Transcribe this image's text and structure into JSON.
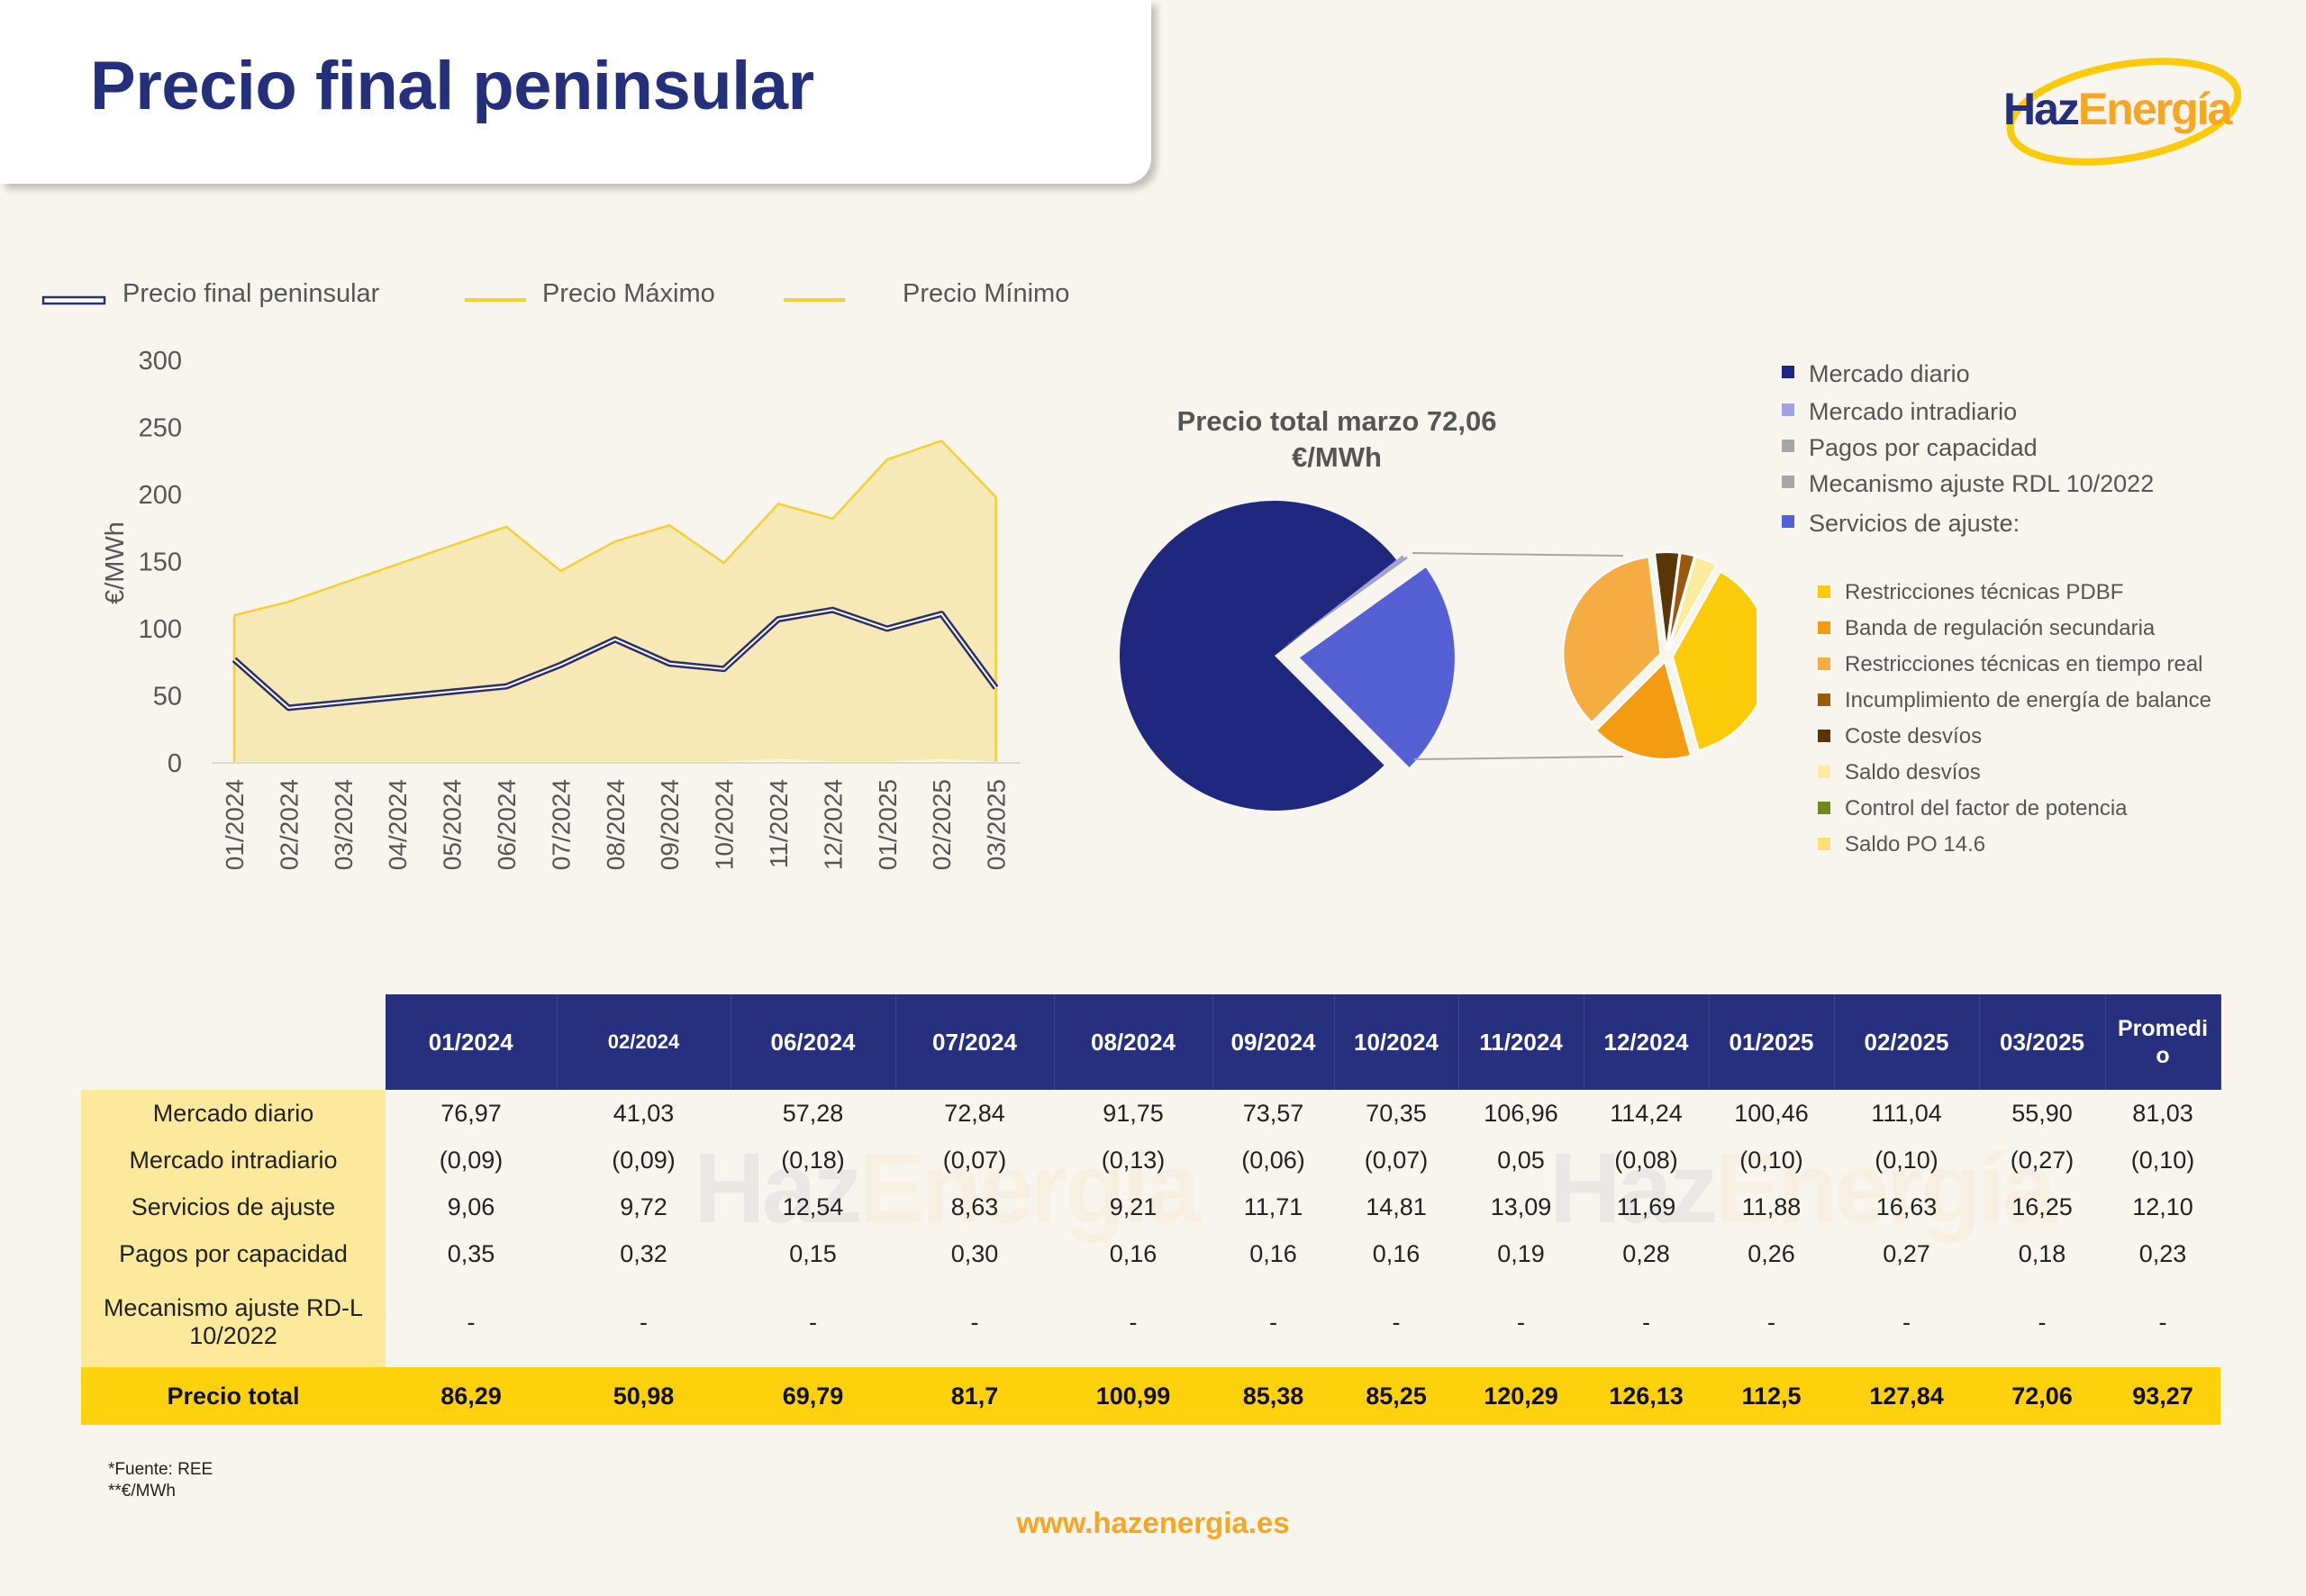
{
  "page": {
    "title": "Precio final peninsular",
    "logo": {
      "part1": "Haz",
      "part2": "Energía"
    },
    "website": "www.hazenergia.es",
    "notes": [
      "*Fuente: REE",
      "**€/MWh"
    ],
    "colors": {
      "navy": "#24307c",
      "orange": "#f5a623",
      "yellow": "#fdd10b",
      "light_yellow": "#fde99b",
      "background": "#f8f5ef"
    }
  },
  "chart_data": [
    {
      "type": "area",
      "ylabel": "€/MWh",
      "ylim": [
        0,
        300
      ],
      "yticks": [
        0,
        50,
        100,
        150,
        200,
        250,
        300
      ],
      "legend_position": "top",
      "categories": [
        "01/2024",
        "02/2024",
        "03/2024",
        "04/2024",
        "05/2024",
        "06/2024",
        "07/2024",
        "08/2024",
        "09/2024",
        "10/2024",
        "11/2024",
        "12/2024",
        "01/2025",
        "02/2025",
        "03/2025"
      ],
      "series": [
        {
          "name": "Precio final peninsular",
          "style": "line",
          "color": "#2b2f6b",
          "values": [
            77,
            41,
            45,
            49,
            53,
            57,
            73,
            92,
            74,
            70,
            107,
            114,
            100,
            111,
            56
          ]
        },
        {
          "name": "Precio Máximo",
          "style": "area",
          "color": "#f5cf33",
          "fill": "#f6e9b6",
          "values": [
            110,
            120,
            134,
            148,
            162,
            176,
            143,
            165,
            177,
            149,
            193,
            182,
            226,
            240,
            198
          ]
        },
        {
          "name": "Precio Mínimo",
          "style": "line",
          "color": "#f5cf33",
          "values": [
            0,
            0,
            0,
            0,
            0,
            0,
            0,
            0,
            0,
            0,
            2,
            0,
            0,
            2,
            0
          ]
        }
      ]
    },
    {
      "type": "pie",
      "title": "Precio total marzo 72,06 €/MWh",
      "slices": [
        {
          "name": "Mercado diario",
          "value": 55.9,
          "color": "#20277f"
        },
        {
          "name": "Mercado intradiario",
          "value": 0.27,
          "color": "#9ea3e2"
        },
        {
          "name": "Pagos por capacidad",
          "value": 0.18,
          "color": "#a6a6a6"
        },
        {
          "name": "Mecanismo ajuste RDL 10/2022",
          "value": 0,
          "color": "#a6a6a6"
        },
        {
          "name": "Servicios de ajuste:",
          "value": 16.25,
          "color": "#5560d4"
        }
      ],
      "sub_slices": [
        {
          "name": "Restricciones técnicas PDBF",
          "value": 5.6,
          "color": "#fbcb0a"
        },
        {
          "name": "Banda de regulación secundaria",
          "value": 2.5,
          "color": "#f39c12"
        },
        {
          "name": "Restricciones técnicas en tiempo real",
          "value": 5.3,
          "color": "#f5ac42"
        },
        {
          "name": "Incumplimiento de energía de balance",
          "value": 0.35,
          "color": "#9b5a0a"
        },
        {
          "name": "Coste desvíos",
          "value": 0.6,
          "color": "#5a3505"
        },
        {
          "name": "Saldo desvíos",
          "value": 0.55,
          "color": "#fdeba0"
        },
        {
          "name": "Control del factor de potencia",
          "value": 0,
          "color": "#6e8a1c"
        },
        {
          "name": "Saldo PO 14.6",
          "value": 0,
          "color": "#fde07a"
        }
      ]
    }
  ],
  "table": {
    "columns": [
      "01/2024",
      "02/2024",
      "06/2024",
      "07/2024",
      "08/2024",
      "09/2024",
      "10/2024",
      "11/2024",
      "12/2024",
      "01/2025",
      "02/2025",
      "03/2025",
      "Promedi o"
    ],
    "rows": [
      {
        "label": "Mercado diario",
        "values": [
          "76,97",
          "41,03",
          "57,28",
          "72,84",
          "91,75",
          "73,57",
          "70,35",
          "106,96",
          "114,24",
          "100,46",
          "111,04",
          "55,90",
          "81,03"
        ]
      },
      {
        "label": "Mercado intradiario",
        "values": [
          "(0,09)",
          "(0,09)",
          "(0,18)",
          "(0,07)",
          "(0,13)",
          "(0,06)",
          "(0,07)",
          "0,05",
          "(0,08)",
          "(0,10)",
          "(0,10)",
          "(0,27)",
          "(0,10)"
        ]
      },
      {
        "label": "Servicios de ajuste",
        "values": [
          "9,06",
          "9,72",
          "12,54",
          "8,63",
          "9,21",
          "11,71",
          "14,81",
          "13,09",
          "11,69",
          "11,88",
          "16,63",
          "16,25",
          "12,10"
        ]
      },
      {
        "label": "Pagos por capacidad",
        "values": [
          "0,35",
          "0,32",
          "0,15",
          "0,30",
          "0,16",
          "0,16",
          "0,16",
          "0,19",
          "0,28",
          "0,26",
          "0,27",
          "0,18",
          "0,23"
        ]
      },
      {
        "label": "Mecanismo ajuste RD-L 10/2022",
        "values": [
          "-",
          "-",
          "-",
          "-",
          "-",
          "-",
          "-",
          "-",
          "-",
          "-",
          "-",
          "-",
          "-"
        ]
      }
    ],
    "total": {
      "label": "Precio total",
      "values": [
        "86,29",
        "50,98",
        "69,79",
        "81,7",
        "100,99",
        "85,38",
        "85,25",
        "120,29",
        "126,13",
        "112,5",
        "127,84",
        "72,06",
        "93,27"
      ]
    }
  }
}
